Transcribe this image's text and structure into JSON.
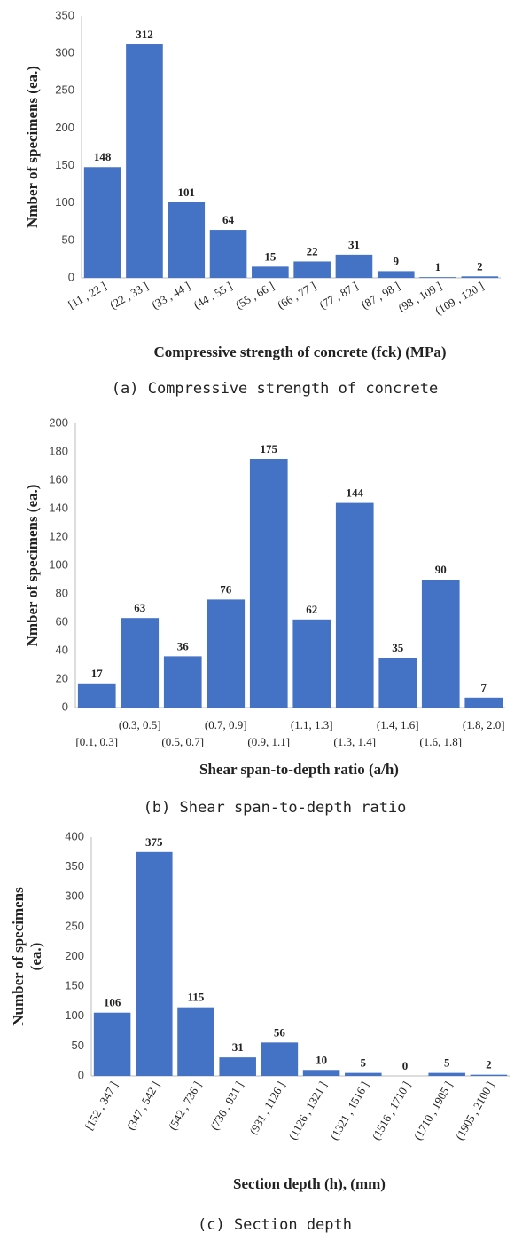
{
  "chart_data": [
    {
      "type": "bar",
      "xlabel": "Compressive strength of concrete  (fck)  (MPa)",
      "ylabel": [
        "Nmber of specimens  (ea.)"
      ],
      "caption": "(a) Compressive strength of concrete",
      "categories": [
        "[11 , 22 ]",
        "(22 , 33 ]",
        "(33 , 44 ]",
        "(44 , 55 ]",
        "(55 , 66 ]",
        "(66 , 77 ]",
        "(77 , 87 ]",
        "(87 , 98 ]",
        "(98 , 109 ]",
        "(109 , 120 ]"
      ],
      "values": [
        148,
        312,
        101,
        64,
        15,
        22,
        31,
        9,
        1,
        2
      ],
      "color": "#4472c4",
      "ylim": [
        0,
        350
      ],
      "yticks": [
        0,
        50,
        100,
        150,
        200,
        250,
        300,
        350
      ]
    },
    {
      "type": "bar",
      "xlabel": "Shear span-to-depth ratio   (a/h)",
      "ylabel": [
        "Nmber of specimens  (ea.)"
      ],
      "caption": "(b) Shear span-to-depth ratio",
      "categories": [
        "[0.1, 0.3]",
        "(0.3, 0.5]",
        "(0.5, 0.7]",
        "(0.7, 0.9]",
        "(0.9, 1.1]",
        "(1.1, 1.3]",
        "(1.3, 1.4]",
        "(1.4, 1.6]",
        "(1.6, 1.8]",
        "(1.8, 2.0]"
      ],
      "values": [
        17,
        63,
        36,
        76,
        175,
        62,
        144,
        35,
        90,
        7
      ],
      "color": "#4472c4",
      "ylim": [
        0,
        200
      ],
      "yticks": [
        0,
        20,
        40,
        60,
        80,
        100,
        120,
        140,
        160,
        180,
        200
      ]
    },
    {
      "type": "bar",
      "xlabel": "Section depth (h), (mm)",
      "ylabel": [
        "Number of specimens",
        "(ea.)"
      ],
      "caption": "(c) Section depth",
      "categories": [
        "[152 , 347 ]",
        "(347 , 542 ]",
        "(542 , 736 ]",
        "(736 , 931 ]",
        "(931 , 1126 ]",
        "(1126 , 1321 ]",
        "(1321 , 1516 ]",
        "(1516 , 1710 ]",
        "(1710 , 1905 ]",
        "(1905 , 2100 ]"
      ],
      "values": [
        106,
        375,
        115,
        31,
        56,
        10,
        5,
        0,
        5,
        2
      ],
      "color": "#4472c4",
      "ylim": [
        0,
        400
      ],
      "yticks": [
        0,
        50,
        100,
        150,
        200,
        250,
        300,
        350,
        400
      ]
    }
  ]
}
